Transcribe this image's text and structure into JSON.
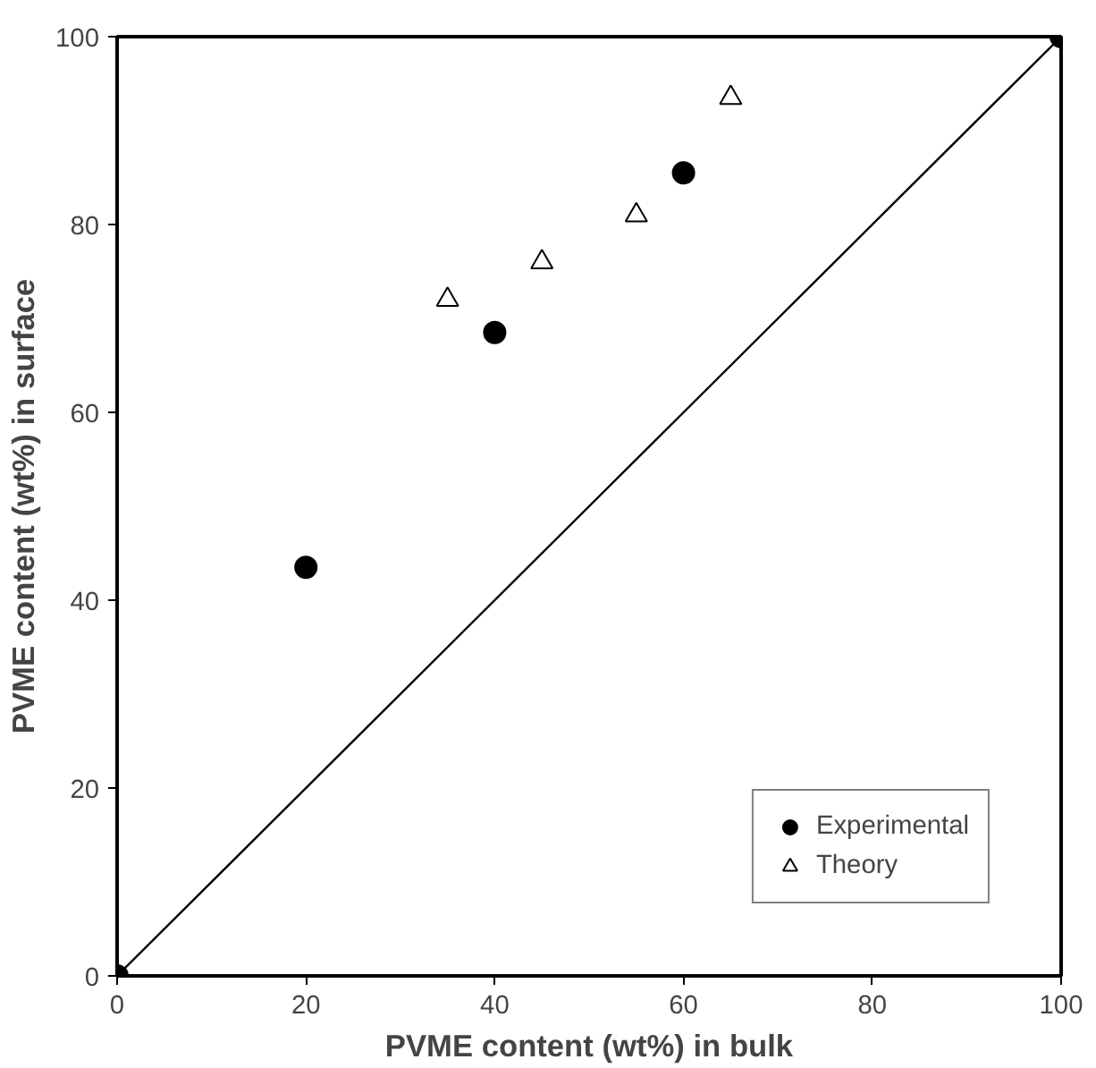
{
  "chart_data": {
    "type": "scatter",
    "xlabel": "PVME content (wt%) in bulk",
    "ylabel": "PVME content (wt%) in surface",
    "xlim": [
      0,
      100
    ],
    "ylim": [
      0,
      100
    ],
    "xticks": [
      0,
      20,
      40,
      60,
      80,
      100
    ],
    "yticks": [
      0,
      20,
      40,
      60,
      80,
      100
    ],
    "grid": false,
    "legend": "bottom right",
    "series": [
      {
        "name": "Experimental",
        "color": "#000000",
        "marker": "circle",
        "x": [
          0,
          20,
          40,
          60,
          100
        ],
        "values": [
          0,
          43.5,
          68.5,
          85.5,
          100
        ]
      },
      {
        "name": "Theory",
        "color": "#000000",
        "marker": "triangle",
        "x": [
          35,
          45,
          55,
          65
        ],
        "values": [
          72,
          76,
          81,
          93.5
        ]
      },
      {
        "type": "line",
        "color": "#000000",
        "x": [
          0,
          100
        ],
        "values": [
          0,
          100
        ]
      }
    ]
  }
}
